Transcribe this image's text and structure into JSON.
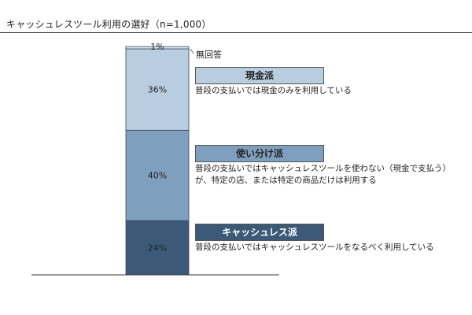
{
  "chart_data": {
    "type": "bar",
    "stacked": true,
    "title": "キャッシュレスツール利用の選好（n=1,000）",
    "ylim": [
      0,
      100
    ],
    "grid": false,
    "segments": [
      {
        "label": "24%",
        "value": 24,
        "color": "#3c5a78"
      },
      {
        "label": "40%",
        "value": 40,
        "color": "#7f9fbe"
      },
      {
        "label": "36%",
        "value": 36,
        "color": "#b9cde0"
      },
      {
        "label": "1%",
        "value": 1,
        "color": "#dbe6f1"
      }
    ],
    "no_answer_label": "無回答"
  },
  "legend": {
    "cash": {
      "name": "現金派",
      "color": "#b9cde0",
      "text_color": "#222222",
      "desc": [
        "普段の支払いでは現金のみを利用している"
      ]
    },
    "mixed": {
      "name": "使い分け派",
      "color": "#7f9fbe",
      "text_color": "#222222",
      "desc": [
        "普段の支払いではキャッシュレスツールを使わない（現金で支払う）",
        "が、特定の店、または特定の商品だけは利用する"
      ]
    },
    "cashless": {
      "name": "キャッシュレス派",
      "color": "#3c5a78",
      "text_color": "#ffffff",
      "desc": [
        "普段の支払いではキャッシュレスツールをなるべく利用している"
      ]
    }
  }
}
